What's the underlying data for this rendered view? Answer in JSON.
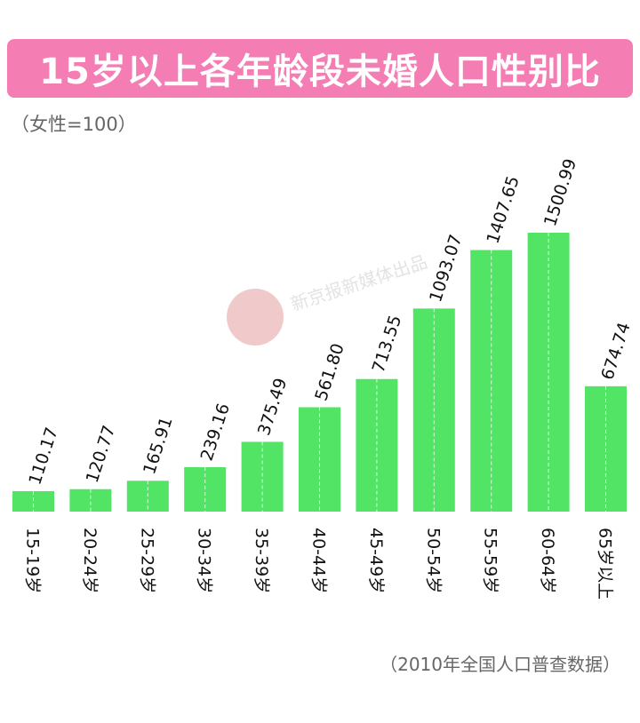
{
  "header": {
    "title": "15岁以上各年龄段未婚人口性别比",
    "subtitle": "（女性=100）"
  },
  "footer": {
    "source": "（2010年全国人口普查数据）"
  },
  "watermark": {
    "text": "新京报新媒体出品"
  },
  "colors": {
    "title_bg": "#f47eb4",
    "bar": "#52e565",
    "watermark_logo": "#e9b3b3"
  },
  "chart_data": {
    "type": "bar",
    "title": "15岁以上各年龄段未婚人口性别比",
    "subtitle": "（女性=100）",
    "categories": [
      "15-19岁",
      "20-24岁",
      "25-29岁",
      "30-34岁",
      "35-39岁",
      "40-44岁",
      "45-49岁",
      "50-54岁",
      "55-59岁",
      "60-64岁",
      "65岁以上"
    ],
    "values": [
      110.17,
      120.77,
      165.91,
      239.16,
      375.49,
      561.8,
      713.55,
      1093.07,
      1407.65,
      1500.99,
      674.74
    ],
    "value_labels": [
      "110.17",
      "120.77",
      "165.91",
      "239.16",
      "375.49",
      "561.80",
      "713.55",
      "1093.07",
      "1407.65",
      "1500.99",
      "674.74"
    ],
    "ylim": [
      0,
      1500.99
    ],
    "grid": false,
    "legend": "none"
  }
}
